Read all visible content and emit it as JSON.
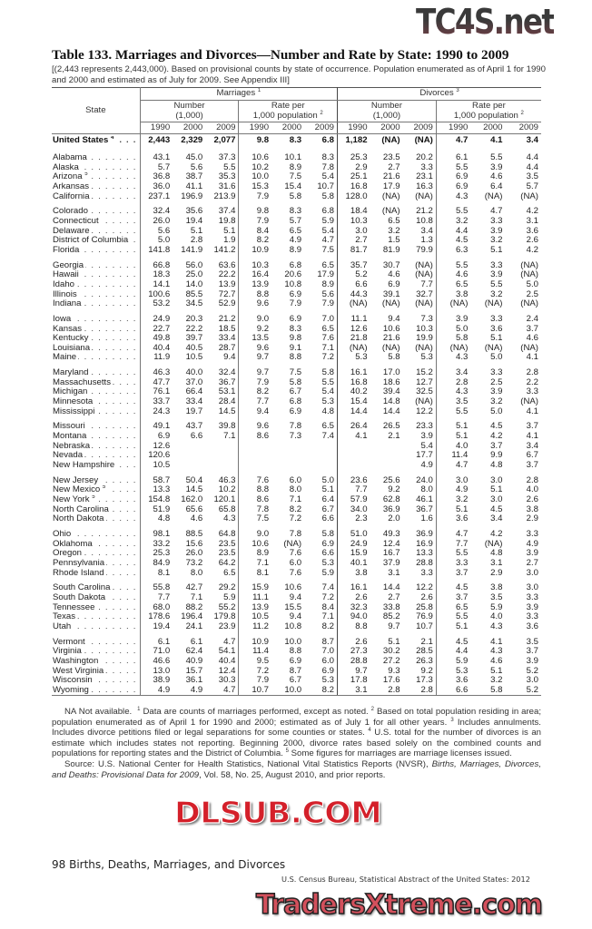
{
  "logo_top": "TC4S.net",
  "title": "Table 133. Marriages and Divorces—Number and Rate by State: 1990 to 2009",
  "subtitle": "[(2,443 represents 2,443,000). Based on provisional counts by state of occurrence. Population enumerated as of April 1 for 1990 and 2000 and estimated as of July for 2009. See Appendix III]",
  "header": {
    "state": "State",
    "marriages": "Marriages",
    "marriages_sup": "1",
    "divorces": "Divorces",
    "divorces_sup": "3",
    "number": "Number",
    "number_unit": "(1,000)",
    "rate": "Rate per",
    "rate_unit": "1,000 population",
    "rate_sup": "2",
    "years": [
      "1990",
      "2000",
      "2009",
      "1990",
      "2000",
      "2009",
      "1990",
      "2000",
      "2009",
      "1990",
      "2000",
      "2009"
    ]
  },
  "us_row": {
    "state": "United States",
    "sup": "4",
    "values": [
      "2,443",
      "2,329",
      "2,077",
      "9.8",
      "8.3",
      "6.8",
      "1,182",
      "(NA)",
      "(NA)",
      "4.7",
      "4.1",
      "3.4"
    ]
  },
  "groups": [
    [
      {
        "state": "Alabama",
        "sup": "",
        "values": [
          "43.1",
          "45.0",
          "37.3",
          "10.6",
          "10.1",
          "8.3",
          "25.3",
          "23.5",
          "20.2",
          "6.1",
          "5.5",
          "4.4"
        ]
      },
      {
        "state": "Alaska",
        "sup": "",
        "values": [
          "5.7",
          "5.6",
          "5.5",
          "10.2",
          "8.9",
          "7.8",
          "2.9",
          "2.7",
          "3.3",
          "5.5",
          "3.9",
          "4.4"
        ]
      },
      {
        "state": "Arizona",
        "sup": "5",
        "values": [
          "36.8",
          "38.7",
          "35.3",
          "10.0",
          "7.5",
          "5.4",
          "25.1",
          "21.6",
          "23.1",
          "6.9",
          "4.6",
          "3.5"
        ]
      },
      {
        "state": "Arkansas",
        "sup": "",
        "values": [
          "36.0",
          "41.1",
          "31.6",
          "15.3",
          "15.4",
          "10.7",
          "16.8",
          "17.9",
          "16.3",
          "6.9",
          "6.4",
          "5.7"
        ]
      },
      {
        "state": "California",
        "sup": "",
        "values": [
          "237.1",
          "196.9",
          "213.9",
          "7.9",
          "5.8",
          "5.8",
          "128.0",
          "(NA)",
          "(NA)",
          "4.3",
          "(NA)",
          "(NA)"
        ]
      }
    ],
    [
      {
        "state": "Colorado",
        "sup": "",
        "values": [
          "32.4",
          "35.6",
          "37.4",
          "9.8",
          "8.3",
          "6.8",
          "18.4",
          "(NA)",
          "21.2",
          "5.5",
          "4.7",
          "4.2"
        ]
      },
      {
        "state": "Connecticut",
        "sup": "",
        "values": [
          "26.0",
          "19.4",
          "19.8",
          "7.9",
          "5.7",
          "5.9",
          "10.3",
          "6.5",
          "10.8",
          "3.2",
          "3.3",
          "3.1"
        ]
      },
      {
        "state": "Delaware",
        "sup": "",
        "values": [
          "5.6",
          "5.1",
          "5.1",
          "8.4",
          "6.5",
          "5.4",
          "3.0",
          "3.2",
          "3.4",
          "4.4",
          "3.9",
          "3.6"
        ]
      },
      {
        "state": "District of Columbia",
        "sup": "",
        "values": [
          "5.0",
          "2.8",
          "1.9",
          "8.2",
          "4.9",
          "4.7",
          "2.7",
          "1.5",
          "1.3",
          "4.5",
          "3.2",
          "2.6"
        ]
      },
      {
        "state": "Florida",
        "sup": "",
        "values": [
          "141.8",
          "141.9",
          "141.2",
          "10.9",
          "8.9",
          "7.5",
          "81.7",
          "81.9",
          "79.9",
          "6.3",
          "5.1",
          "4.2"
        ]
      }
    ],
    [
      {
        "state": "Georgia",
        "sup": "",
        "values": [
          "66.8",
          "56.0",
          "63.6",
          "10.3",
          "6.8",
          "6.5",
          "35.7",
          "30.7",
          "(NA)",
          "5.5",
          "3.3",
          "(NA)"
        ]
      },
      {
        "state": "Hawaii",
        "sup": "",
        "values": [
          "18.3",
          "25.0",
          "22.2",
          "16.4",
          "20.6",
          "17.9",
          "5.2",
          "4.6",
          "(NA)",
          "4.6",
          "3.9",
          "(NA)"
        ]
      },
      {
        "state": "Idaho",
        "sup": "",
        "values": [
          "14.1",
          "14.0",
          "13.9",
          "13.9",
          "10.8",
          "8.9",
          "6.6",
          "6.9",
          "7.7",
          "6.5",
          "5.5",
          "5.0"
        ]
      },
      {
        "state": "Illinois",
        "sup": "",
        "values": [
          "100.6",
          "85.5",
          "72.7",
          "8.8",
          "6.9",
          "5.6",
          "44.3",
          "39.1",
          "32.7",
          "3.8",
          "3.2",
          "2.5"
        ]
      },
      {
        "state": "Indiana",
        "sup": "",
        "values": [
          "53.2",
          "34.5",
          "52.9",
          "9.6",
          "7.9",
          "7.9",
          "(NA)",
          "(NA)",
          "(NA)",
          "(NA)",
          "(NA)",
          "(NA)"
        ]
      }
    ],
    [
      {
        "state": "Iowa",
        "sup": "",
        "values": [
          "24.9",
          "20.3",
          "21.2",
          "9.0",
          "6.9",
          "7.0",
          "11.1",
          "9.4",
          "7.3",
          "3.9",
          "3.3",
          "2.4"
        ]
      },
      {
        "state": "Kansas",
        "sup": "",
        "values": [
          "22.7",
          "22.2",
          "18.5",
          "9.2",
          "8.3",
          "6.5",
          "12.6",
          "10.6",
          "10.3",
          "5.0",
          "3.6",
          "3.7"
        ]
      },
      {
        "state": "Kentucky",
        "sup": "",
        "values": [
          "49.8",
          "39.7",
          "33.4",
          "13.5",
          "9.8",
          "7.6",
          "21.8",
          "21.6",
          "19.9",
          "5.8",
          "5.1",
          "4.6"
        ]
      },
      {
        "state": "Louisiana",
        "sup": "",
        "values": [
          "40.4",
          "40.5",
          "28.7",
          "9.6",
          "9.1",
          "7.1",
          "(NA)",
          "(NA)",
          "(NA)",
          "(NA)",
          "(NA)",
          "(NA)"
        ]
      },
      {
        "state": "Maine",
        "sup": "",
        "values": [
          "11.9",
          "10.5",
          "9.4",
          "9.7",
          "8.8",
          "7.2",
          "5.3",
          "5.8",
          "5.3",
          "4.3",
          "5.0",
          "4.1"
        ]
      }
    ],
    [
      {
        "state": "Maryland",
        "sup": "",
        "values": [
          "46.3",
          "40.0",
          "32.4",
          "9.7",
          "7.5",
          "5.8",
          "16.1",
          "17.0",
          "15.2",
          "3.4",
          "3.3",
          "2.8"
        ]
      },
      {
        "state": "Massachusetts",
        "sup": "",
        "values": [
          "47.7",
          "37.0",
          "36.7",
          "7.9",
          "5.8",
          "5.5",
          "16.8",
          "18.6",
          "12.7",
          "2.8",
          "2.5",
          "2.2"
        ]
      },
      {
        "state": "Michigan",
        "sup": "",
        "values": [
          "76.1",
          "66.4",
          "53.1",
          "8.2",
          "6.7",
          "5.4",
          "40.2",
          "39.4",
          "32.5",
          "4.3",
          "3.9",
          "3.3"
        ]
      },
      {
        "state": "Minnesota",
        "sup": "",
        "values": [
          "33.7",
          "33.4",
          "28.4",
          "7.7",
          "6.8",
          "5.3",
          "15.4",
          "14.8",
          "(NA)",
          "3.5",
          "3.2",
          "(NA)"
        ]
      },
      {
        "state": "Mississippi",
        "sup": "",
        "values": [
          "24.3",
          "19.7",
          "14.5",
          "9.4",
          "6.9",
          "4.8",
          "14.4",
          "14.4",
          "12.2",
          "5.5",
          "5.0",
          "4.1"
        ]
      }
    ],
    [
      {
        "state": "Missouri",
        "sup": "",
        "values": [
          "49.1",
          "43.7",
          "39.8",
          "9.6",
          "7.8",
          "6.5",
          "26.4",
          "26.5",
          "23.3",
          "5.1",
          "4.5",
          "3.7"
        ]
      },
      {
        "state": "Montana",
        "sup": "",
        "values": [
          "6.9",
          "6.6",
          "7.1",
          "8.6",
          "7.3",
          "7.4",
          "4.1",
          "2.1",
          "3.9",
          "5.1",
          "4.2",
          "4.1"
        ]
      },
      {
        "state": "Nebraska",
        "sup": "",
        "values": [
          "12.6",
          "",
          "",
          "",
          "",
          "",
          "",
          "",
          "5.4",
          "4.0",
          "3.7",
          "3.4"
        ]
      },
      {
        "state": "Nevada",
        "sup": "",
        "values": [
          "120.6",
          "",
          "",
          "",
          "",
          "",
          "",
          "",
          "17.7",
          "11.4",
          "9.9",
          "6.7"
        ]
      },
      {
        "state": "New Hampshire",
        "sup": "",
        "values": [
          "10.5",
          "",
          "",
          "",
          "",
          "",
          "",
          "",
          "4.9",
          "4.7",
          "4.8",
          "3.7"
        ]
      }
    ],
    [
      {
        "state": "New Jersey",
        "sup": "",
        "values": [
          "58.7",
          "50.4",
          "46.3",
          "7.6",
          "6.0",
          "5.0",
          "23.6",
          "25.6",
          "24.0",
          "3.0",
          "3.0",
          "2.8"
        ]
      },
      {
        "state": "New Mexico",
        "sup": "5",
        "values": [
          "13.3",
          "14.5",
          "10.2",
          "8.8",
          "8.0",
          "5.1",
          "7.7",
          "9.2",
          "8.0",
          "4.9",
          "5.1",
          "4.0"
        ]
      },
      {
        "state": "New York",
        "sup": "5",
        "values": [
          "154.8",
          "162.0",
          "120.1",
          "8.6",
          "7.1",
          "6.4",
          "57.9",
          "62.8",
          "46.1",
          "3.2",
          "3.0",
          "2.6"
        ]
      },
      {
        "state": "North Carolina",
        "sup": "",
        "values": [
          "51.9",
          "65.6",
          "65.8",
          "7.8",
          "8.2",
          "6.7",
          "34.0",
          "36.9",
          "36.7",
          "5.1",
          "4.5",
          "3.8"
        ]
      },
      {
        "state": "North Dakota",
        "sup": "",
        "values": [
          "4.8",
          "4.6",
          "4.3",
          "7.5",
          "7.2",
          "6.6",
          "2.3",
          "2.0",
          "1.6",
          "3.6",
          "3.4",
          "2.9"
        ]
      }
    ],
    [
      {
        "state": "Ohio",
        "sup": "",
        "values": [
          "98.1",
          "88.5",
          "64.8",
          "9.0",
          "7.8",
          "5.8",
          "51.0",
          "49.3",
          "36.9",
          "4.7",
          "4.2",
          "3.3"
        ]
      },
      {
        "state": "Oklahoma",
        "sup": "",
        "values": [
          "33.2",
          "15.6",
          "23.5",
          "10.6",
          "(NA)",
          "6.9",
          "24.9",
          "12.4",
          "16.9",
          "7.7",
          "(NA)",
          "4.9"
        ]
      },
      {
        "state": "Oregon",
        "sup": "",
        "values": [
          "25.3",
          "26.0",
          "23.5",
          "8.9",
          "7.6",
          "6.6",
          "15.9",
          "16.7",
          "13.3",
          "5.5",
          "4.8",
          "3.9"
        ]
      },
      {
        "state": "Pennsylvania",
        "sup": "",
        "values": [
          "84.9",
          "73.2",
          "64.2",
          "7.1",
          "6.0",
          "5.3",
          "40.1",
          "37.9",
          "28.8",
          "3.3",
          "3.1",
          "2.7"
        ]
      },
      {
        "state": "Rhode Island",
        "sup": "",
        "values": [
          "8.1",
          "8.0",
          "6.5",
          "8.1",
          "7.6",
          "5.9",
          "3.8",
          "3.1",
          "3.3",
          "3.7",
          "2.9",
          "3.0"
        ]
      }
    ],
    [
      {
        "state": "South Carolina",
        "sup": "",
        "values": [
          "55.8",
          "42.7",
          "29.2",
          "15.9",
          "10.6",
          "7.4",
          "16.1",
          "14.4",
          "12.2",
          "4.5",
          "3.8",
          "3.0"
        ]
      },
      {
        "state": "South Dakota",
        "sup": "",
        "values": [
          "7.7",
          "7.1",
          "5.9",
          "11.1",
          "9.4",
          "7.2",
          "2.6",
          "2.7",
          "2.6",
          "3.7",
          "3.5",
          "3.3"
        ]
      },
      {
        "state": "Tennessee",
        "sup": "",
        "values": [
          "68.0",
          "88.2",
          "55.2",
          "13.9",
          "15.5",
          "8.4",
          "32.3",
          "33.8",
          "25.8",
          "6.5",
          "5.9",
          "3.9"
        ]
      },
      {
        "state": "Texas",
        "sup": "",
        "values": [
          "178.6",
          "196.4",
          "179.8",
          "10.5",
          "9.4",
          "7.1",
          "94.0",
          "85.2",
          "76.9",
          "5.5",
          "4.0",
          "3.3"
        ]
      },
      {
        "state": "Utah",
        "sup": "",
        "values": [
          "19.4",
          "24.1",
          "23.9",
          "11.2",
          "10.8",
          "8.2",
          "8.8",
          "9.7",
          "10.7",
          "5.1",
          "4.3",
          "3.6"
        ]
      }
    ],
    [
      {
        "state": "Vermont",
        "sup": "",
        "values": [
          "6.1",
          "6.1",
          "4.7",
          "10.9",
          "10.0",
          "8.7",
          "2.6",
          "5.1",
          "2.1",
          "4.5",
          "4.1",
          "3.5"
        ]
      },
      {
        "state": "Virginia",
        "sup": "",
        "values": [
          "71.0",
          "62.4",
          "54.1",
          "11.4",
          "8.8",
          "7.0",
          "27.3",
          "30.2",
          "28.5",
          "4.4",
          "4.3",
          "3.7"
        ]
      },
      {
        "state": "Washington",
        "sup": "",
        "values": [
          "46.6",
          "40.9",
          "40.4",
          "9.5",
          "6.9",
          "6.0",
          "28.8",
          "27.2",
          "26.3",
          "5.9",
          "4.6",
          "3.9"
        ]
      },
      {
        "state": "West Virginia",
        "sup": "",
        "values": [
          "13.0",
          "15.7",
          "12.4",
          "7.2",
          "8.7",
          "6.9",
          "9.7",
          "9.3",
          "9.2",
          "5.3",
          "5.1",
          "5.2"
        ]
      },
      {
        "state": "Wisconsin",
        "sup": "",
        "values": [
          "38.9",
          "36.1",
          "30.3",
          "7.9",
          "6.7",
          "5.3",
          "17.8",
          "17.6",
          "17.3",
          "3.6",
          "3.2",
          "3.0"
        ]
      },
      {
        "state": "Wyoming",
        "sup": "",
        "values": [
          "4.9",
          "4.9",
          "4.7",
          "10.7",
          "10.0",
          "8.2",
          "3.1",
          "2.8",
          "2.8",
          "6.6",
          "5.8",
          "5.2"
        ]
      }
    ]
  ],
  "notes": {
    "na": "NA Not available.",
    "n1_sup": "1",
    "n1": " Data are counts of marriages performed, except as noted.",
    "n2_sup": "2",
    "n2": " Based on total population residing in area; population enumerated as of April 1 for 1990 and 2000; estimated as of July 1 for all other years.",
    "n3_sup": "3",
    "n3": " Includes annulments. Includes divorce petitions filed or legal separations for some counties or states.",
    "n4_sup": "4",
    "n4": " U.S. total for the number of divorces is an estimate which includes states not reporting. Beginning 2000, divorce rates based solely on the combined counts and populations for reporting states and the District of Columbia.",
    "n5_sup": "5",
    "n5": " Some figures for marriages are marriage licenses issued.",
    "source_prefix": "Source: U.S. National Center for Health Statistics, National Vital Statistics Reports (NVSR), ",
    "source_title": "Births, Marriages, Divorces, and Deaths: Provisional Data for 2009",
    "source_suffix": ", Vol. 58, No. 25, August 2010, and prior reports."
  },
  "footer": {
    "page": "98  Births, Deaths, Marriages, and Divorces",
    "census": "U.S. Census Bureau, Statistical Abstract of the United States: 2012"
  },
  "watermarks": {
    "middle": "DLSUB.COM",
    "bottom": "TradersXtreme.com"
  }
}
